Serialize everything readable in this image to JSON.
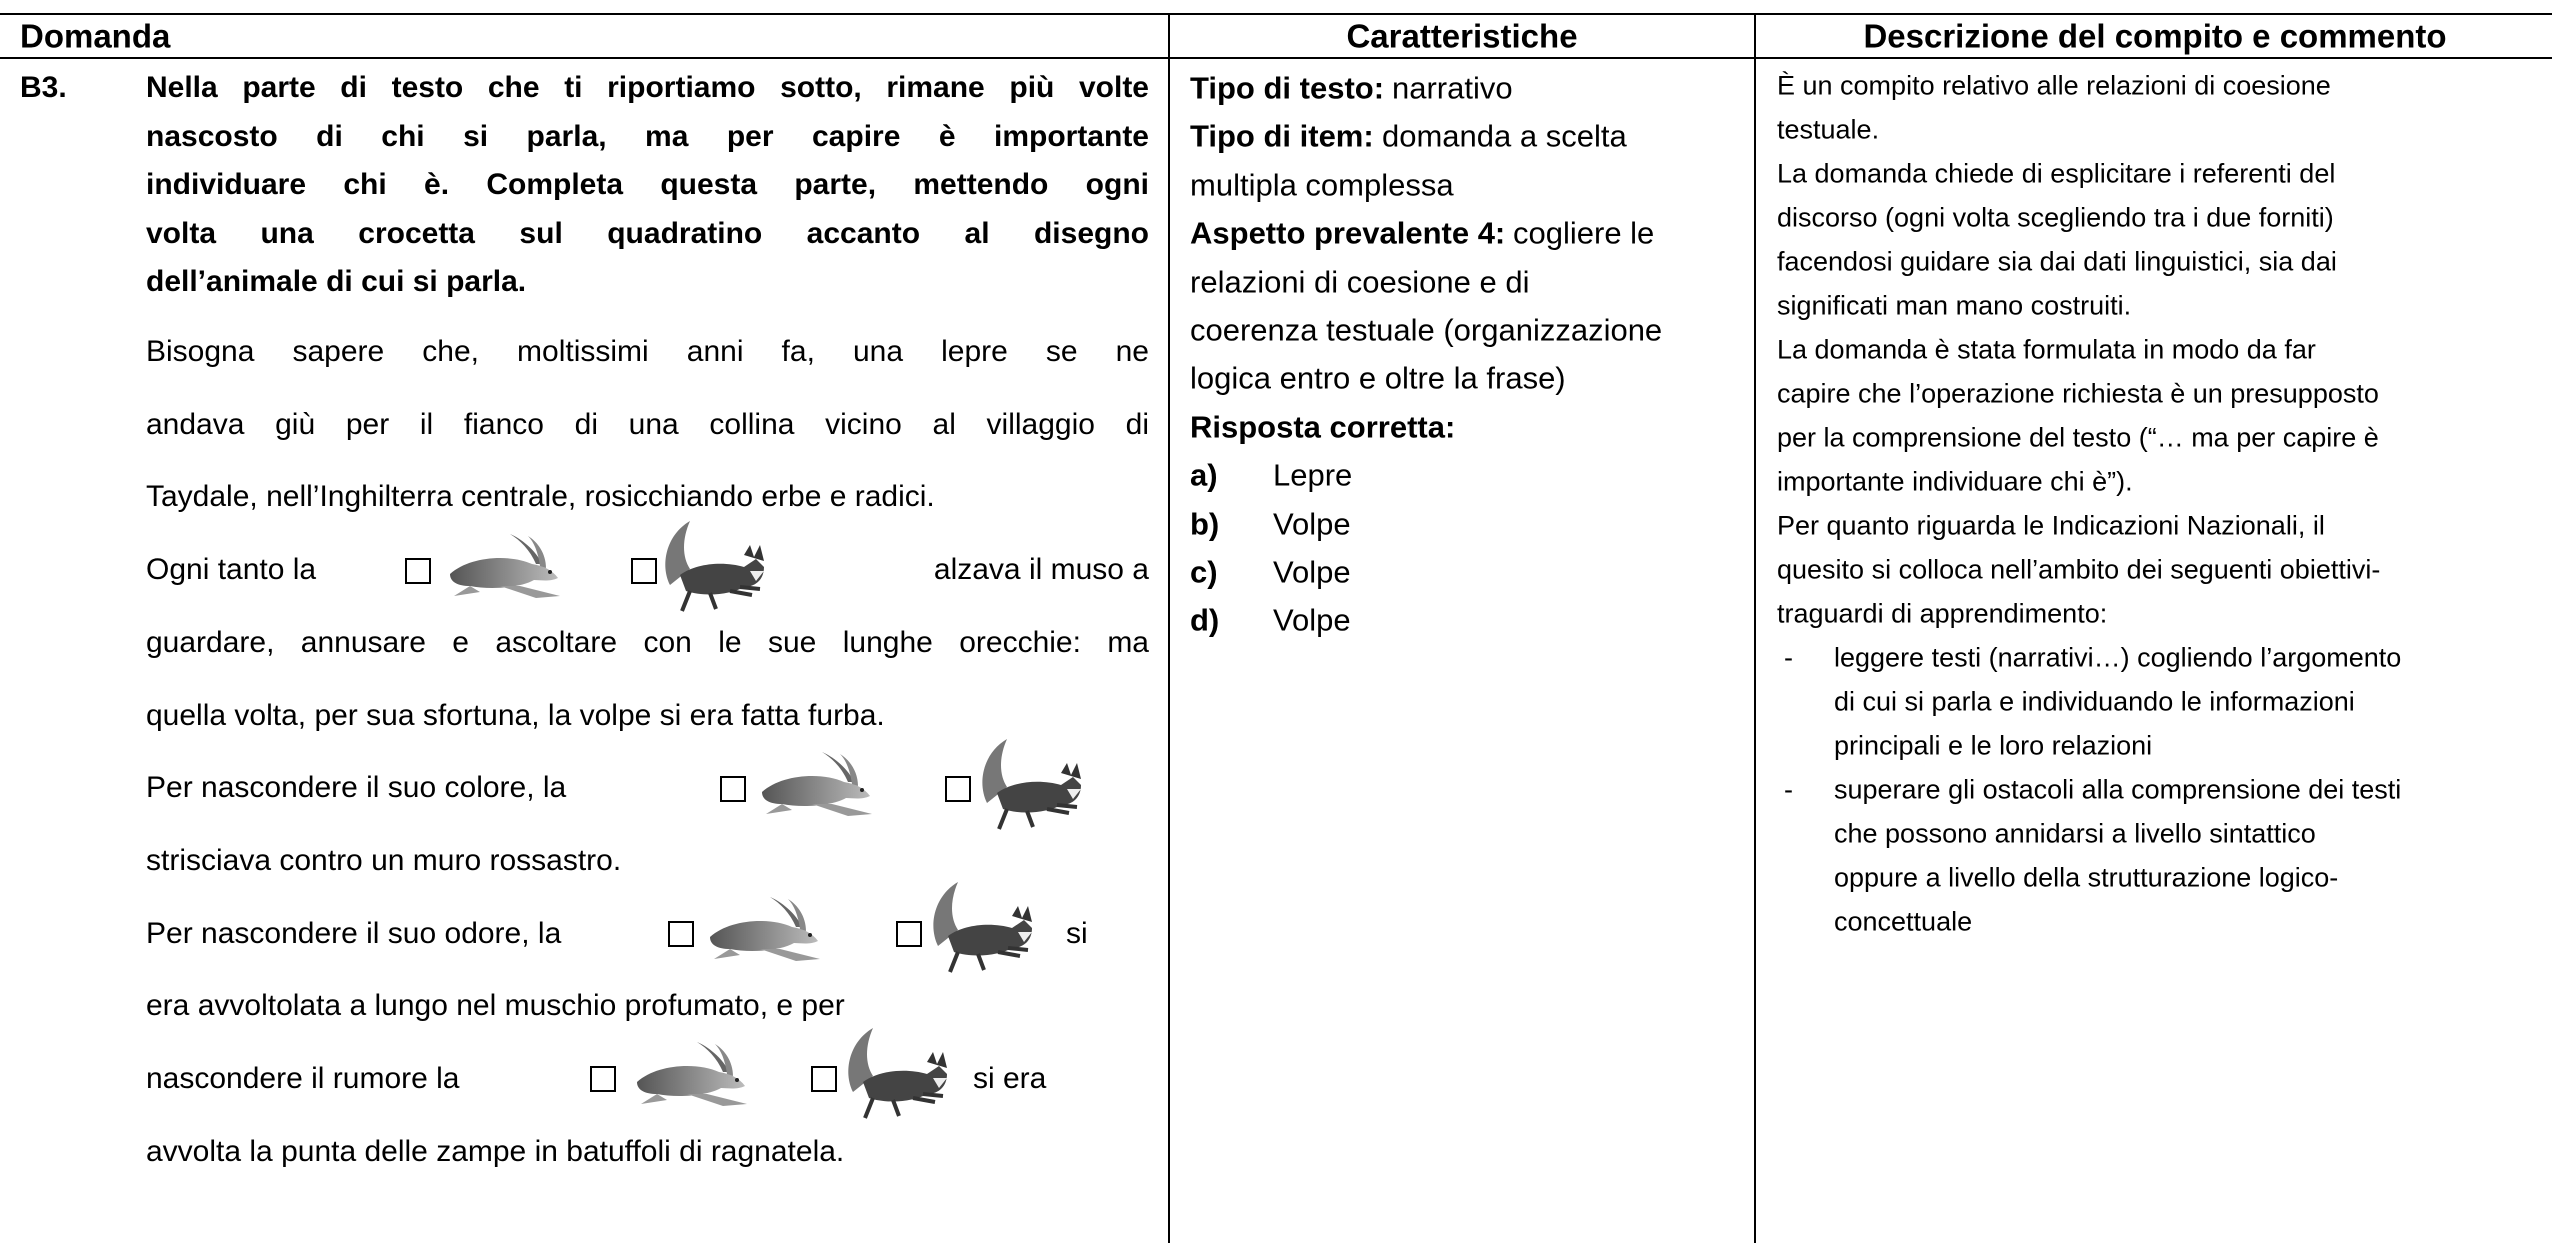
{
  "header": {
    "columns": [
      "Domanda",
      "Caratteristiche",
      "Descrizione del compito e commento"
    ]
  },
  "question": {
    "number": "B3.",
    "prompt_lines": [
      "Nella parte di testo che ti riportiamo sotto, rimane più volte",
      "nascosto di chi si parla, ma per capire è importante",
      "individuare chi è. Completa questa parte, mettendo ogni",
      "volta una crocetta sul quadratino accanto al disegno",
      "dell’animale di cui si parla."
    ],
    "passage_lines": [
      [
        "Bisogna sapere che, moltissimi anni fa, una lepre se ne"
      ],
      [
        "andava giù per il fianco di una collina vicino al villaggio di"
      ],
      [
        "Taydale, nell’Inghilterra centrale, rosicchiando erbe e radici."
      ],
      [
        "Ogni tanto la",
        "alzava il muso a"
      ],
      [
        "guardare, annusare e ascoltare con le sue lunghe orecchie: ma"
      ],
      [
        "quella volta, per sua sfortuna, la volpe si era fatta furba."
      ],
      [
        "Per nascondere il suo colore, la"
      ],
      [
        "strisciava contro un muro rossastro."
      ],
      [
        "Per nascondere il suo odore, la",
        "si"
      ],
      [
        "era avvoltolata a lungo nel muschio profumato, e per"
      ],
      [
        "nascondere il rumore la",
        "si era"
      ],
      [
        "avvolta la punta delle zampe in batuffoli di ragnatela."
      ]
    ]
  },
  "characteristics": {
    "tipo_testo": {
      "label": "Tipo di testo:",
      "text": "narrativo"
    },
    "tipo_item": {
      "label": "Tipo di item:",
      "lines": [
        "domanda a scelta",
        "multipla complessa"
      ]
    },
    "aspetto": {
      "label": "Aspetto prevalente 4:",
      "lines": [
        "cogliere le",
        "relazioni di coesione e di",
        "coerenza testuale (organizzazione",
        "logica entro  e oltre la frase)"
      ]
    },
    "risposta": {
      "label": "Risposta corretta:",
      "answers": [
        {
          "letter": "a)",
          "answer": "Lepre"
        },
        {
          "letter": "b)",
          "answer": "Volpe"
        },
        {
          "letter": "c)",
          "answer": "Volpe"
        },
        {
          "letter": "d)",
          "answer": "Volpe"
        }
      ]
    }
  },
  "description": {
    "lines": [
      "È un compito relativo alle relazioni di coesione",
      "testuale.",
      "La domanda chiede di esplicitare i referenti del",
      "discorso (ogni volta scegliendo tra i due forniti)",
      "facendosi guidare sia dai dati linguistici, sia dai",
      "significati man mano costruiti.",
      "La domanda è stata formulata in modo da far",
      "capire che l’operazione richiesta è un presupposto",
      "per la comprensione del testo (“… ma per capire è",
      "importante individuare chi è”).",
      "Per quanto riguarda le Indicazioni Nazionali, il",
      "quesito si colloca nell’ambito dei seguenti obiettivi-",
      "traguardi di apprendimento:"
    ],
    "bullets": [
      {
        "marker": "-",
        "lines": [
          "leggere testi (narrativi…) cogliendo l’argomento",
          "di cui si parla e individuando le informazioni",
          "principali e le loro relazioni"
        ]
      },
      {
        "marker": "-",
        "lines": [
          "superare gli ostacoli alla comprensione dei testi",
          "che possono annidarsi a livello sintattico",
          "oppure a livello della strutturazione logico-",
          "concettuale"
        ]
      }
    ]
  }
}
